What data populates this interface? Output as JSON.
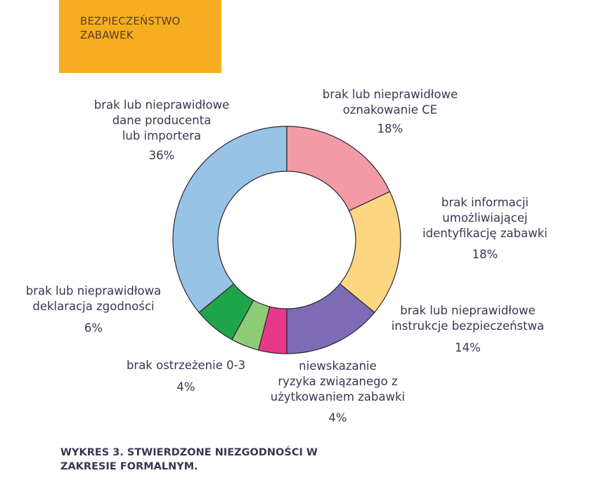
{
  "header": {
    "lines": [
      "BEZPIECZEŃSTWO",
      "ZABAWEK"
    ]
  },
  "chart_data": {
    "type": "pie",
    "donut": true,
    "slices": [
      {
        "label_lines": [
          "brak lub nieprawidłowe",
          "oznakowanie CE"
        ],
        "value": 18,
        "value_label": "18%",
        "color": "#f39aa7"
      },
      {
        "label_lines": [
          "brak informacji",
          "umożliwiającej",
          "identyfikację zabawki"
        ],
        "value": 18,
        "value_label": "18%",
        "color": "#fdd682"
      },
      {
        "label_lines": [
          "brak lub nieprawidłowe",
          "instrukcje bezpieczeństwa"
        ],
        "value": 14,
        "value_label": "14%",
        "color": "#7d6bb5"
      },
      {
        "label_lines": [
          "niewskazanie",
          "ryzyka związanego z",
          "użytkowaniem zabawki"
        ],
        "value": 4,
        "value_label": "4%",
        "color": "#e8388a"
      },
      {
        "label_lines": [
          "brak ostrzeżenie 0-3"
        ],
        "value": 4,
        "value_label": "4%",
        "color": "#8dcc77"
      },
      {
        "label_lines": [
          "brak lub nieprawidłowa",
          "deklaracja zgodności"
        ],
        "value": 6,
        "value_label": "6%",
        "color": "#1ea54a"
      },
      {
        "label_lines": [
          "brak lub nieprawidłowe",
          "dane producenta",
          "lub importera"
        ],
        "value": 36,
        "value_label": "36%",
        "color": "#96c3e6"
      }
    ]
  },
  "caption": {
    "lines": [
      "WYKRES 3. STWIERDZONE NIEZGODNOŚCI W",
      "ZAKRESIE FORMALNYM."
    ]
  }
}
